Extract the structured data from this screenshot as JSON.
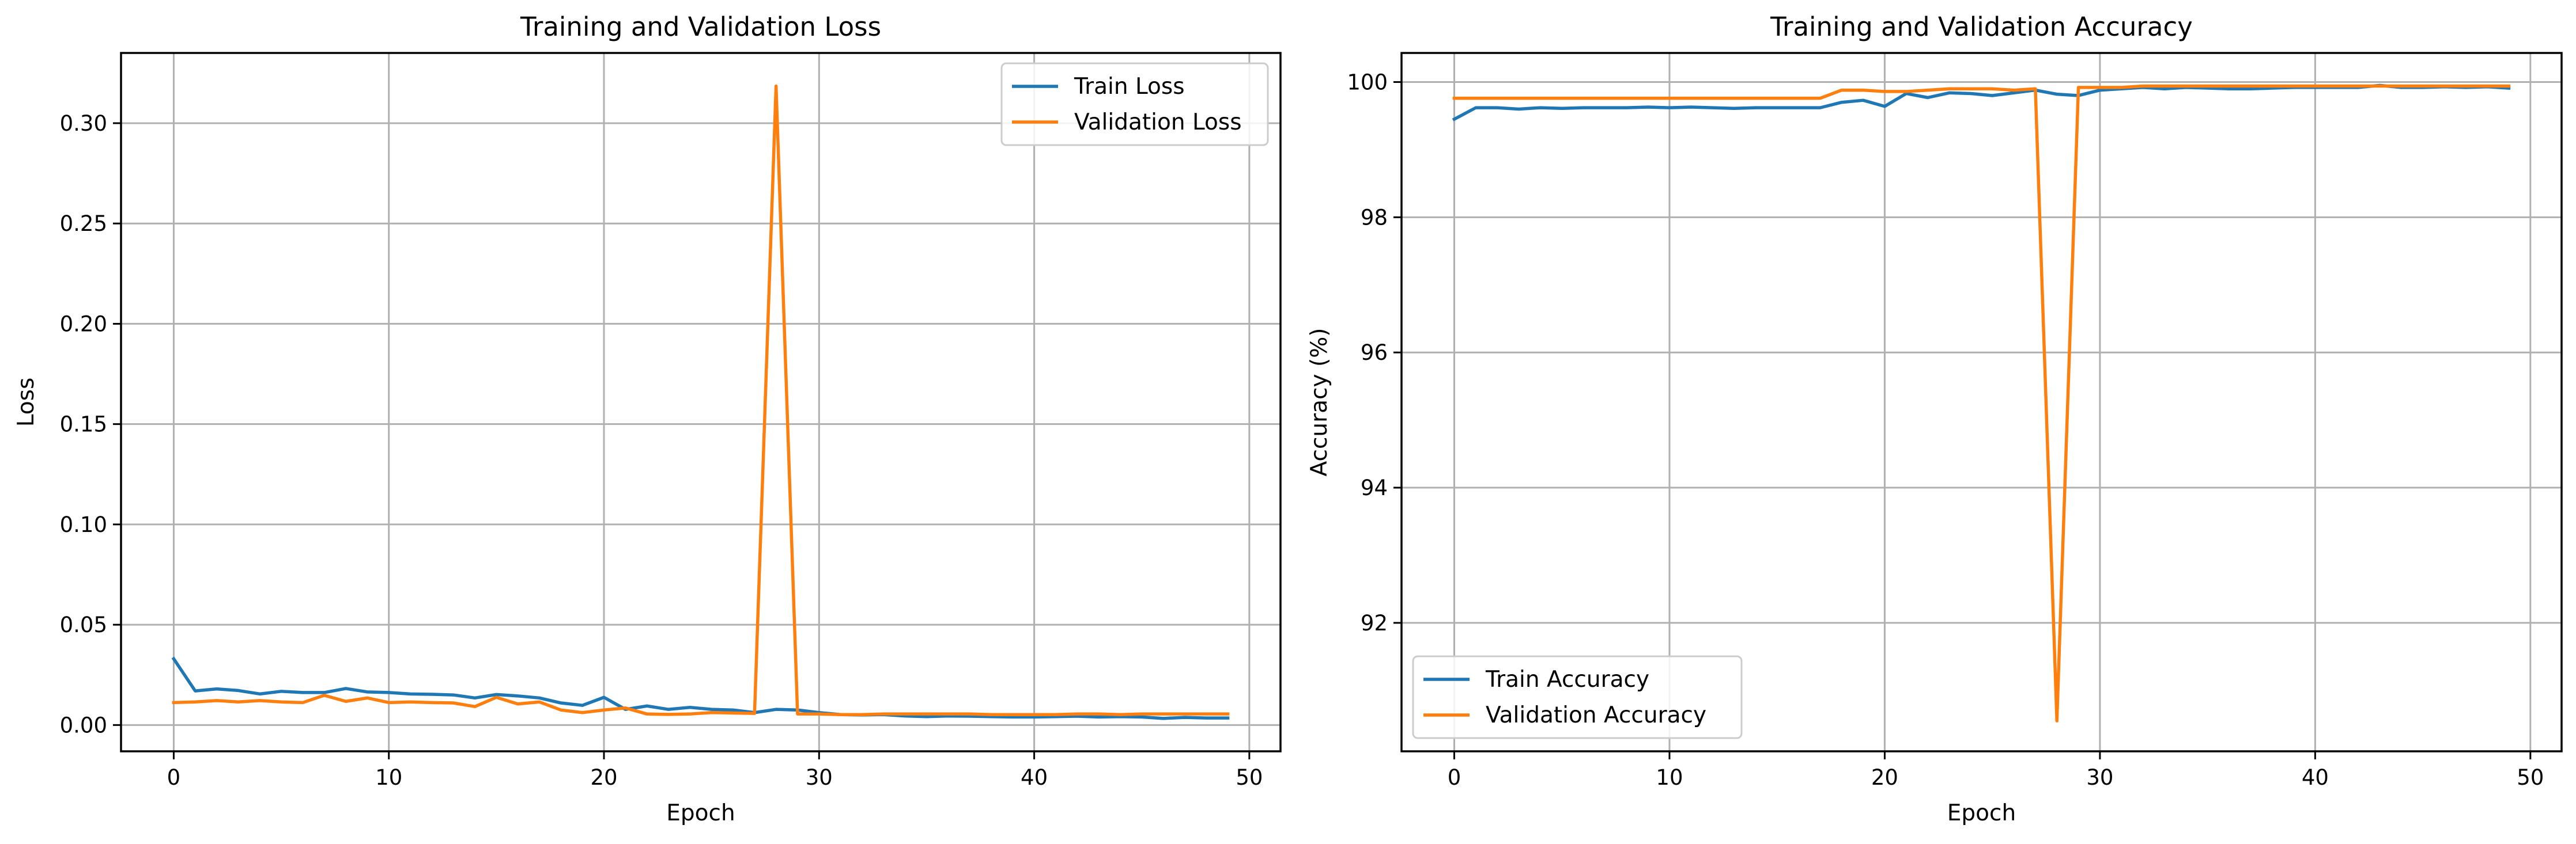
{
  "chart_data": [
    {
      "type": "line",
      "title": "Training and Validation Loss",
      "xlabel": "Epoch",
      "ylabel": "Loss",
      "xlim": [
        -2.45,
        51.45
      ],
      "ylim": [
        -0.0131,
        0.335
      ],
      "xticks": [
        0,
        10,
        20,
        30,
        40,
        50
      ],
      "yticks": [
        0.0,
        0.05,
        0.1,
        0.15,
        0.2,
        0.25,
        0.3
      ],
      "ytick_labels": [
        "0.00",
        "0.05",
        "0.10",
        "0.15",
        "0.20",
        "0.25",
        "0.30"
      ],
      "grid": true,
      "legend_position": "top-right",
      "x": [
        0,
        1,
        2,
        3,
        4,
        5,
        6,
        7,
        8,
        9,
        10,
        11,
        12,
        13,
        14,
        15,
        16,
        17,
        18,
        19,
        20,
        21,
        22,
        23,
        24,
        25,
        26,
        27,
        28,
        29,
        30,
        31,
        32,
        33,
        34,
        35,
        36,
        37,
        38,
        39,
        40,
        41,
        42,
        43,
        44,
        45,
        46,
        47,
        48,
        49
      ],
      "series": [
        {
          "name": "Train Loss",
          "color": "#1f77b4",
          "values": [
            0.033,
            0.017,
            0.018,
            0.0172,
            0.0155,
            0.0168,
            0.0162,
            0.0162,
            0.0182,
            0.0165,
            0.0162,
            0.0155,
            0.0153,
            0.015,
            0.0135,
            0.0152,
            0.0145,
            0.0135,
            0.011,
            0.0098,
            0.0138,
            0.0078,
            0.0095,
            0.0078,
            0.0088,
            0.0078,
            0.0075,
            0.0062,
            0.0078,
            0.0075,
            0.0062,
            0.0052,
            0.005,
            0.0052,
            0.0045,
            0.0042,
            0.0045,
            0.0044,
            0.0042,
            0.004,
            0.004,
            0.0042,
            0.0044,
            0.004,
            0.0042,
            0.004,
            0.0033,
            0.0038,
            0.0035,
            0.0035
          ]
        },
        {
          "name": "Validation Loss",
          "color": "#ff7f0e",
          "values": [
            0.0112,
            0.0115,
            0.0122,
            0.0115,
            0.0122,
            0.0115,
            0.0112,
            0.0148,
            0.0118,
            0.0135,
            0.0112,
            0.0115,
            0.0112,
            0.011,
            0.0092,
            0.0138,
            0.0105,
            0.0115,
            0.0075,
            0.0062,
            0.0075,
            0.0085,
            0.0055,
            0.0053,
            0.0055,
            0.0062,
            0.006,
            0.0058,
            0.3185,
            0.0055,
            0.0055,
            0.0052,
            0.0052,
            0.0055,
            0.0055,
            0.0055,
            0.0055,
            0.0055,
            0.0052,
            0.0052,
            0.0052,
            0.0052,
            0.0055,
            0.0055,
            0.0052,
            0.0055,
            0.0055,
            0.0055,
            0.0055,
            0.0055
          ]
        }
      ]
    },
    {
      "type": "line",
      "title": "Training and Validation Accuracy",
      "xlabel": "Epoch",
      "ylabel": "Accuracy (%)",
      "xlim": [
        -2.45,
        51.45
      ],
      "ylim": [
        90.1,
        100.43
      ],
      "xticks": [
        0,
        10,
        20,
        30,
        40,
        50
      ],
      "yticks": [
        92,
        94,
        96,
        98,
        100
      ],
      "ytick_labels": [
        "92",
        "94",
        "96",
        "98",
        "100"
      ],
      "grid": true,
      "legend_position": "bottom-left",
      "x": [
        0,
        1,
        2,
        3,
        4,
        5,
        6,
        7,
        8,
        9,
        10,
        11,
        12,
        13,
        14,
        15,
        16,
        17,
        18,
        19,
        20,
        21,
        22,
        23,
        24,
        25,
        26,
        27,
        28,
        29,
        30,
        31,
        32,
        33,
        34,
        35,
        36,
        37,
        38,
        39,
        40,
        41,
        42,
        43,
        44,
        45,
        46,
        47,
        48,
        49
      ],
      "series": [
        {
          "name": "Train Accuracy",
          "color": "#1f77b4",
          "values": [
            99.45,
            99.62,
            99.62,
            99.6,
            99.62,
            99.61,
            99.62,
            99.62,
            99.62,
            99.63,
            99.62,
            99.63,
            99.62,
            99.61,
            99.62,
            99.62,
            99.62,
            99.62,
            99.7,
            99.73,
            99.64,
            99.83,
            99.77,
            99.84,
            99.83,
            99.8,
            99.84,
            99.88,
            99.82,
            99.8,
            99.88,
            99.9,
            99.92,
            99.9,
            99.92,
            99.91,
            99.9,
            99.9,
            99.91,
            99.92,
            99.92,
            99.92,
            99.92,
            99.95,
            99.92,
            99.92,
            99.93,
            99.92,
            99.93,
            99.91
          ]
        },
        {
          "name": "Validation Accuracy",
          "color": "#ff7f0e",
          "values": [
            99.76,
            99.76,
            99.76,
            99.76,
            99.76,
            99.76,
            99.76,
            99.76,
            99.76,
            99.76,
            99.76,
            99.76,
            99.76,
            99.76,
            99.76,
            99.76,
            99.76,
            99.76,
            99.88,
            99.88,
            99.86,
            99.86,
            99.88,
            99.9,
            99.9,
            99.9,
            99.88,
            99.9,
            90.55,
            99.92,
            99.92,
            99.92,
            99.94,
            99.94,
            99.94,
            99.94,
            99.94,
            99.94,
            99.94,
            99.94,
            99.94,
            99.94,
            99.94,
            99.94,
            99.94,
            99.94,
            99.94,
            99.94,
            99.94,
            99.94
          ]
        }
      ]
    }
  ]
}
